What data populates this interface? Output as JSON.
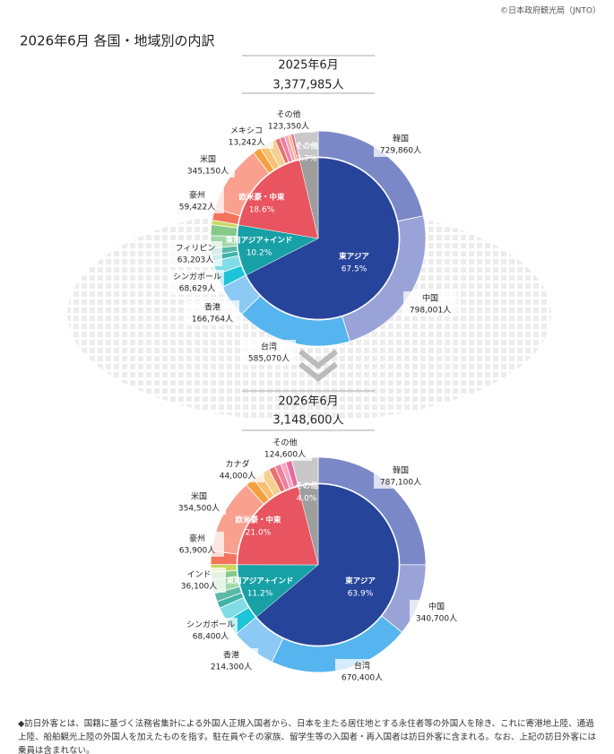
{
  "header": {
    "source": "©日本政府観光局（JNTO）",
    "title": "2026年6月 各国・地域別の内訳"
  },
  "note": "◆訪日外客とは、国籍に基づく法務省集計による外国人正規入国者から、日本を主たる居住地とする永住者等の外国人を除き、これに寄港地上陸、通過上陸、船舶観光上陸の外国人を加えたものを指す。駐在員やその家族、留学生等の入国者・再入国者は訪日外客に含まれる。なお、上記の訪日外客には乗員は含まれない。",
  "chart_data": [
    {
      "type": "donut",
      "title": "2025年6月",
      "subtitle": "3,377,985人",
      "inner": {
        "categories": [
          "東アジア",
          "東南アジア+インド",
          "欧米豪・中東",
          "その他"
        ],
        "values": [
          67.5,
          10.2,
          18.6,
          3.7
        ],
        "value_labels": [
          "67.5%",
          "10.2%",
          "18.6%",
          "3.7%"
        ],
        "colors": [
          "#27449b",
          "#17a0a6",
          "#e8545f",
          "#9e9e9e"
        ]
      },
      "outer": {
        "categories": [
          "韓国",
          "中国",
          "台湾",
          "香港",
          null,
          "シンガポール",
          null,
          null,
          "フィリピン",
          null,
          null,
          "豪州",
          "米国",
          null,
          null,
          null,
          null,
          null,
          null,
          "メキシコ",
          null,
          "その他"
        ],
        "values": [
          729860,
          798001,
          585070,
          166764,
          70000,
          68629,
          30000,
          35000,
          63203,
          55000,
          22700,
          59422,
          345150,
          40000,
          40000,
          45000,
          25000,
          25000,
          20000,
          13242,
          15491,
          123350
        ],
        "value_labels": [
          "729,860人",
          "798,001人",
          "585,070人",
          "166,764人",
          null,
          "68,629人",
          null,
          null,
          "63,203人",
          null,
          null,
          "59,422人",
          "345,150人",
          null,
          null,
          null,
          null,
          null,
          null,
          "13,242人",
          null,
          "123,350人"
        ],
        "colors": [
          "#7b88c8",
          "#9aa3d8",
          "#56b4ef",
          "#8ccaf5",
          "#1bc4d8",
          "#80dce6",
          "#3fb3a8",
          "#5cb9a8",
          "#a0d8a8",
          "#86c98a",
          "#c8d860",
          "#f4735c",
          "#f9a08e",
          "#f5a040",
          "#f8c070",
          "#f5d090",
          "#e8706e",
          "#f07ea0",
          "#f4a6c0",
          "#f7b45a",
          "#e66aa0",
          "#c8c8c8"
        ]
      }
    },
    {
      "type": "donut",
      "title": "2026年6月",
      "subtitle": "3,148,600人",
      "inner": {
        "categories": [
          "東アジア",
          "東南アジア+インド",
          "欧米豪・中東",
          "その他"
        ],
        "values": [
          63.9,
          11.2,
          21.0,
          4.0
        ],
        "value_labels": [
          "63.9%",
          "11.2%",
          "21.0%",
          "4.0%"
        ],
        "colors": [
          "#27449b",
          "#17a0a6",
          "#e8545f",
          "#9e9e9e"
        ]
      },
      "outer": {
        "categories": [
          "韓国",
          "中国",
          "台湾",
          "香港",
          null,
          "シンガポール",
          null,
          null,
          null,
          null,
          "インド",
          "豪州",
          "米国",
          "カナダ",
          null,
          null,
          null,
          null,
          null,
          null,
          "その他"
        ],
        "values": [
          787100,
          340700,
          670400,
          214300,
          75000,
          68400,
          32000,
          40000,
          65000,
          36143,
          36100,
          63900,
          354500,
          44000,
          40000,
          45000,
          30000,
          30000,
          25000,
          28806,
          124600
        ],
        "value_labels": [
          "787,100人",
          "340,700人",
          "670,400人",
          "214,300人",
          null,
          "68,400人",
          null,
          null,
          null,
          null,
          "36,100人",
          "63,900人",
          "354,500人",
          "44,000人",
          null,
          null,
          null,
          null,
          null,
          null,
          "124,600人"
        ],
        "colors": [
          "#7b88c8",
          "#9aa3d8",
          "#56b4ef",
          "#8ccaf5",
          "#1bc4d8",
          "#80dce6",
          "#3fb3a8",
          "#5cb9a8",
          "#a0d8a8",
          "#86c98a",
          "#c8d860",
          "#f4735c",
          "#f9a08e",
          "#f5a040",
          "#f8c070",
          "#f5d090",
          "#e8706e",
          "#f07ea0",
          "#f4a6c0",
          "#e66aa0",
          "#c8c8c8"
        ]
      }
    }
  ]
}
